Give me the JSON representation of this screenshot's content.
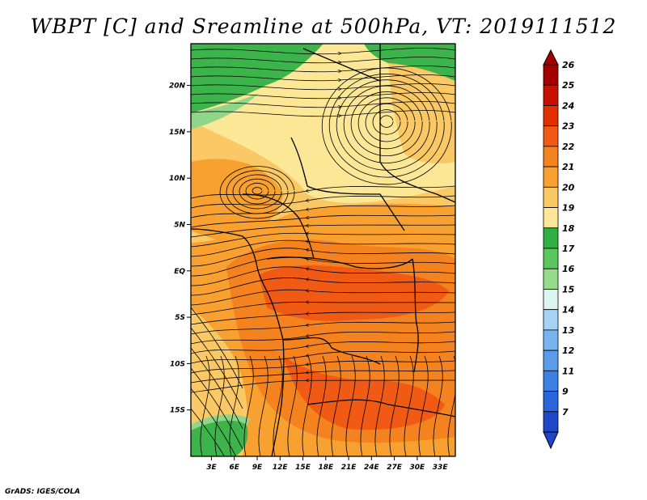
{
  "title": "WBPT [C] and Sreamline at 500hPa, VT: 2019111512",
  "credit": "GrADS: IGES/COLA",
  "map": {
    "lon_ticks": [
      "3E",
      "6E",
      "9E",
      "12E",
      "15E",
      "18E",
      "21E",
      "24E",
      "27E",
      "30E",
      "33E"
    ],
    "lat_ticks": [
      "20N",
      "15N",
      "10N",
      "5N",
      "EQ",
      "5S",
      "10S",
      "15S"
    ],
    "lon_values": [
      3,
      6,
      9,
      12,
      15,
      18,
      21,
      24,
      27,
      30,
      33
    ],
    "lat_values": [
      20,
      15,
      10,
      5,
      0,
      -5,
      -10,
      -15
    ],
    "lon_range": [
      0.3,
      35
    ],
    "lat_range": [
      -20,
      24.5
    ]
  },
  "colorbar": {
    "labels": [
      "26",
      "25",
      "24",
      "23",
      "22",
      "21",
      "20",
      "19",
      "18",
      "17",
      "16",
      "15",
      "14",
      "13",
      "12",
      "11",
      "9",
      "7"
    ],
    "colors": [
      "#a50000",
      "#c81000",
      "#e03000",
      "#f05a14",
      "#f4821e",
      "#f8a030",
      "#fac864",
      "#fce796",
      "#30b040",
      "#5ac85a",
      "#96dc8c",
      "#ddf5ef",
      "#a6d2f5",
      "#78b4ee",
      "#5a9bea",
      "#3c82e4",
      "#2864dc",
      "#1e46c8"
    ]
  },
  "field_colors": {
    "green": "#3cb44b",
    "light_green": "#8fd68a",
    "pale_yellow": "#fce796",
    "light_orange": "#fac864",
    "orange": "#f8a030",
    "dark_orange": "#f4821e",
    "red_orange": "#f05a14"
  }
}
